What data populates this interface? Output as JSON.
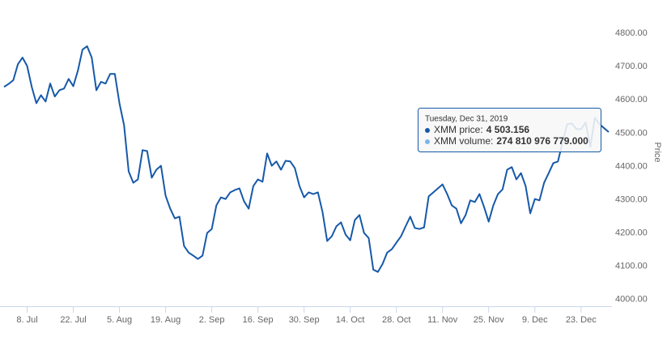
{
  "chart_data": {
    "type": "line",
    "y_axis_label": "Price",
    "x": [
      "2019-07-01",
      "2019-07-02",
      "2019-07-03",
      "2019-07-04",
      "2019-07-05",
      "2019-07-08",
      "2019-07-09",
      "2019-07-10",
      "2019-07-11",
      "2019-07-12",
      "2019-07-15",
      "2019-07-16",
      "2019-07-17",
      "2019-07-18",
      "2019-07-19",
      "2019-07-22",
      "2019-07-23",
      "2019-07-24",
      "2019-07-25",
      "2019-07-26",
      "2019-07-29",
      "2019-07-30",
      "2019-07-31",
      "2019-08-01",
      "2019-08-02",
      "2019-08-05",
      "2019-08-06",
      "2019-08-07",
      "2019-08-08",
      "2019-08-09",
      "2019-08-12",
      "2019-08-13",
      "2019-08-14",
      "2019-08-15",
      "2019-08-16",
      "2019-08-19",
      "2019-08-20",
      "2019-08-21",
      "2019-08-22",
      "2019-08-23",
      "2019-08-26",
      "2019-08-27",
      "2019-08-28",
      "2019-08-29",
      "2019-08-30",
      "2019-09-02",
      "2019-09-03",
      "2019-09-04",
      "2019-09-05",
      "2019-09-06",
      "2019-09-09",
      "2019-09-10",
      "2019-09-11",
      "2019-09-12",
      "2019-09-13",
      "2019-09-16",
      "2019-09-17",
      "2019-09-18",
      "2019-09-19",
      "2019-09-20",
      "2019-09-23",
      "2019-09-24",
      "2019-09-25",
      "2019-09-26",
      "2019-09-27",
      "2019-09-30",
      "2019-10-01",
      "2019-10-02",
      "2019-10-03",
      "2019-10-04",
      "2019-10-07",
      "2019-10-08",
      "2019-10-09",
      "2019-10-10",
      "2019-10-11",
      "2019-10-14",
      "2019-10-15",
      "2019-10-16",
      "2019-10-17",
      "2019-10-18",
      "2019-10-21",
      "2019-10-22",
      "2019-10-23",
      "2019-10-24",
      "2019-10-25",
      "2019-10-28",
      "2019-10-29",
      "2019-10-30",
      "2019-10-31",
      "2019-11-01",
      "2019-11-04",
      "2019-11-05",
      "2019-11-06",
      "2019-11-07",
      "2019-11-08",
      "2019-11-11",
      "2019-11-12",
      "2019-11-13",
      "2019-11-14",
      "2019-11-15",
      "2019-11-18",
      "2019-11-19",
      "2019-11-20",
      "2019-11-21",
      "2019-11-22",
      "2019-11-25",
      "2019-11-26",
      "2019-11-27",
      "2019-11-28",
      "2019-11-29",
      "2019-12-02",
      "2019-12-03",
      "2019-12-04",
      "2019-12-05",
      "2019-12-06",
      "2019-12-09",
      "2019-12-10",
      "2019-12-11",
      "2019-12-12",
      "2019-12-13",
      "2019-12-16",
      "2019-12-17",
      "2019-12-18",
      "2019-12-19",
      "2019-12-20",
      "2019-12-23",
      "2019-12-24",
      "2019-12-25",
      "2019-12-26",
      "2019-12-27",
      "2019-12-30",
      "2019-12-31"
    ],
    "series": [
      {
        "name": "XMM price",
        "color": "#1659a8",
        "values": [
          4639,
          4648,
          4659,
          4707,
          4727,
          4702,
          4639,
          4590,
          4614,
          4595,
          4649,
          4610,
          4629,
          4634,
          4663,
          4641,
          4688,
          4751,
          4761,
          4727,
          4629,
          4654,
          4649,
          4678,
          4678,
          4590,
          4524,
          4385,
          4351,
          4361,
          4449,
          4446,
          4366,
          4390,
          4402,
          4312,
          4273,
          4244,
          4249,
          4161,
          4141,
          4132,
          4122,
          4132,
          4200,
          4212,
          4283,
          4307,
          4302,
          4322,
          4329,
          4334,
          4295,
          4273,
          4341,
          4361,
          4354,
          4439,
          4402,
          4415,
          4390,
          4417,
          4415,
          4395,
          4341,
          4307,
          4322,
          4317,
          4322,
          4263,
          4176,
          4190,
          4220,
          4232,
          4195,
          4178,
          4239,
          4254,
          4200,
          4185,
          4090,
          4083,
          4107,
          4141,
          4151,
          4171,
          4190,
          4220,
          4249,
          4215,
          4212,
          4217,
          4310,
          4322,
          4334,
          4346,
          4317,
          4283,
          4273,
          4229,
          4254,
          4298,
          4293,
          4317,
          4278,
          4234,
          4283,
          4317,
          4331,
          4390,
          4398,
          4361,
          4380,
          4341,
          4259,
          4302,
          4298,
          4351,
          4380,
          4410,
          4415,
          4473,
          4527,
          4529,
          4512,
          4512,
          4532,
          4459,
          4546,
          4527,
          4515,
          4503.156
        ]
      }
    ],
    "ylim": [
      3980,
      4900
    ],
    "yticks": [
      {
        "value": 4000,
        "label": "4000.00"
      },
      {
        "value": 4100,
        "label": "4100.00"
      },
      {
        "value": 4200,
        "label": "4200.00"
      },
      {
        "value": 4300,
        "label": "4300.00"
      },
      {
        "value": 4400,
        "label": "4400.00"
      },
      {
        "value": 4500,
        "label": "4500.00"
      },
      {
        "value": 4600,
        "label": "4600.00"
      },
      {
        "value": 4700,
        "label": "4700.00"
      },
      {
        "value": 4800,
        "label": "4800.00"
      }
    ],
    "xticks": [
      {
        "value": "2019-07-08",
        "label": "8. Jul"
      },
      {
        "value": "2019-07-22",
        "label": "22. Jul"
      },
      {
        "value": "2019-08-05",
        "label": "5. Aug"
      },
      {
        "value": "2019-08-19",
        "label": "19. Aug"
      },
      {
        "value": "2019-09-02",
        "label": "2. Sep"
      },
      {
        "value": "2019-09-16",
        "label": "16. Sep"
      },
      {
        "value": "2019-09-30",
        "label": "30. Sep"
      },
      {
        "value": "2019-10-14",
        "label": "14. Oct"
      },
      {
        "value": "2019-10-28",
        "label": "28. Oct"
      },
      {
        "value": "2019-11-11",
        "label": "11. Nov"
      },
      {
        "value": "2019-11-25",
        "label": "25. Nov"
      },
      {
        "value": "2019-12-09",
        "label": "9. Dec"
      },
      {
        "value": "2019-12-23",
        "label": "23. Dec"
      }
    ],
    "tooltip": {
      "date": "Tuesday, Dec 31, 2019",
      "rows": [
        {
          "text": "XMM price:",
          "color": "#1659a8",
          "value": 4503.156,
          "value_label": "4 503.156"
        },
        {
          "text": "XMM volume:",
          "color": "#7cb5ec",
          "value": 274810976779,
          "value_label": "274 810 976 779.000"
        }
      ]
    }
  }
}
